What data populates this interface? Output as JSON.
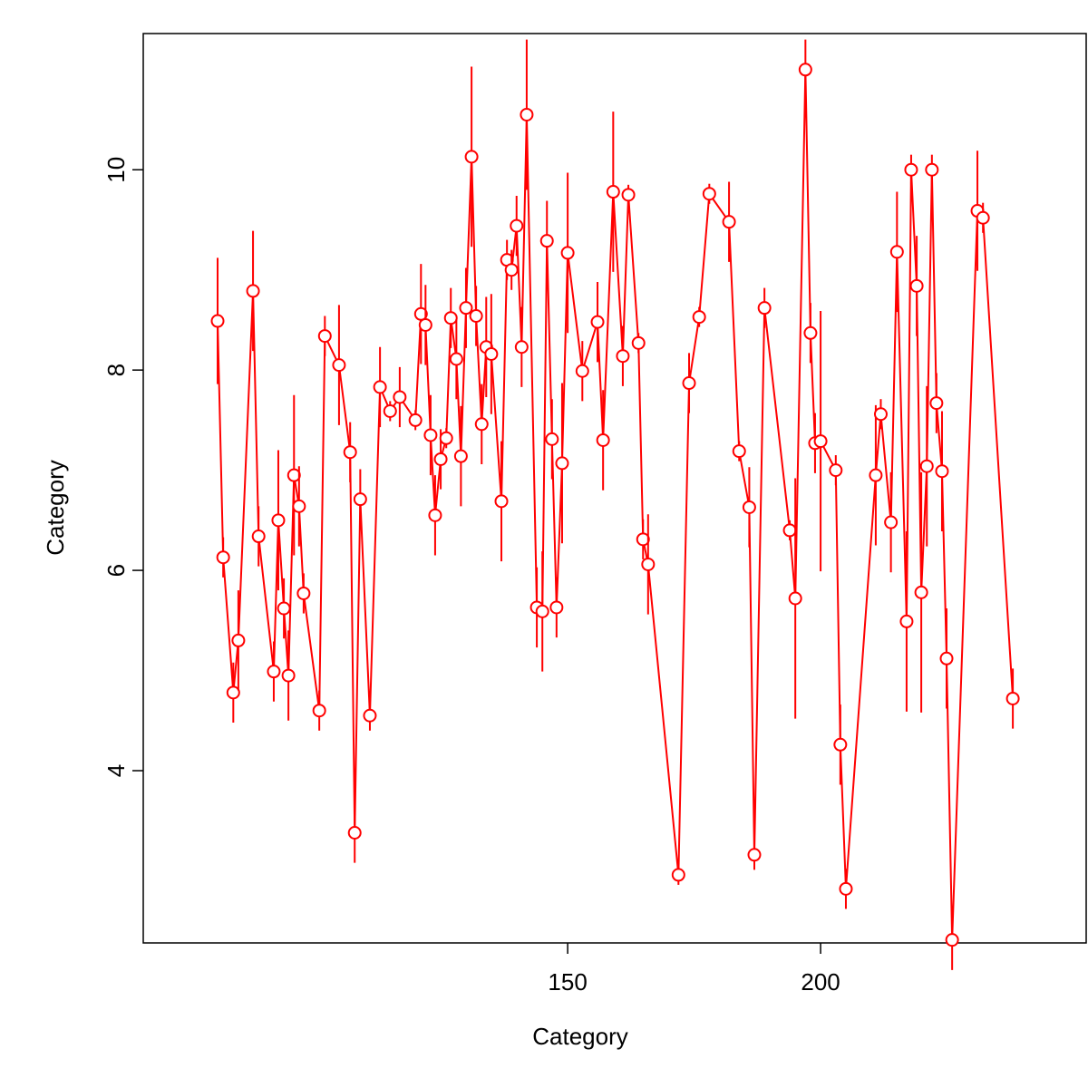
{
  "chart_data": {
    "type": "line-errorbar",
    "xlabel": "Category",
    "ylabel": "Category",
    "color": "#ff0000",
    "x": [
      80.8,
      81.9,
      83.9,
      84.9,
      87.8,
      88.9,
      91.9,
      92.8,
      93.9,
      94.8,
      95.9,
      96.9,
      97.8,
      100.9,
      102.0,
      104.8,
      107.0,
      107.9,
      109.0,
      110.9,
      112.9,
      114.9,
      116.8,
      119.9,
      121.0,
      121.9,
      122.9,
      123.8,
      124.9,
      126.0,
      126.9,
      128.0,
      128.9,
      129.9,
      131.0,
      131.9,
      133.0,
      133.9,
      134.9,
      136.9,
      138.0,
      138.9,
      139.9,
      140.9,
      141.9,
      143.9,
      145.0,
      145.9,
      146.9,
      147.8,
      148.9,
      150.0,
      152.9,
      155.9,
      157.0,
      159.0,
      160.9,
      162.0,
      164.0,
      164.9,
      165.9,
      171.9,
      174.0,
      176.0,
      178.0,
      181.9,
      183.9,
      185.9,
      186.9,
      188.9,
      193.9,
      195.0,
      197.0,
      198.0,
      198.9,
      200.0,
      203.0,
      203.9,
      205.0,
      210.9,
      211.9,
      213.9,
      215.1,
      217.0,
      217.9,
      219.0,
      219.9,
      221.0,
      222.0,
      222.9,
      224.0,
      224.9,
      226.0,
      231.0,
      232.1,
      238.0
    ],
    "y": [
      8.49,
      6.13,
      4.78,
      5.3,
      8.79,
      6.34,
      4.99,
      6.5,
      5.62,
      4.95,
      6.95,
      6.64,
      5.77,
      4.6,
      8.34,
      8.05,
      7.18,
      3.38,
      6.71,
      4.55,
      7.83,
      7.59,
      7.73,
      7.5,
      8.56,
      8.45,
      7.35,
      6.55,
      7.11,
      7.32,
      8.52,
      8.11,
      7.14,
      8.62,
      10.13,
      8.54,
      7.46,
      8.23,
      8.16,
      6.69,
      9.1,
      9.0,
      9.44,
      8.23,
      10.55,
      5.63,
      5.59,
      9.29,
      7.31,
      5.63,
      7.07,
      9.17,
      7.99,
      8.48,
      7.3,
      9.78,
      8.14,
      9.75,
      8.27,
      6.31,
      6.06,
      2.96,
      7.87,
      8.53,
      9.76,
      9.48,
      7.19,
      6.63,
      3.16,
      8.62,
      6.4,
      5.72,
      11.0,
      8.37,
      7.27,
      7.29,
      7.0,
      4.26,
      2.82,
      6.95,
      7.56,
      6.48,
      9.18,
      5.49,
      10.0,
      8.84,
      5.78,
      7.04,
      10.0,
      7.67,
      6.99,
      5.12,
      2.31,
      9.59,
      9.52,
      4.72
    ],
    "errors": [
      0.63,
      0.2,
      0.3,
      0.5,
      0.6,
      0.3,
      0.3,
      0.7,
      0.3,
      0.45,
      0.8,
      0.4,
      0.2,
      0.2,
      0.2,
      0.6,
      0.3,
      0.3,
      0.3,
      0.15,
      0.4,
      0.1,
      0.3,
      0.1,
      0.5,
      0.4,
      0.4,
      0.4,
      0.3,
      0.1,
      0.3,
      0.4,
      0.5,
      0.4,
      0.9,
      0.3,
      0.4,
      0.5,
      0.6,
      0.6,
      0.2,
      0.2,
      0.3,
      0.4,
      0.75,
      0.4,
      0.6,
      0.4,
      0.4,
      0.3,
      0.8,
      0.8,
      0.3,
      0.4,
      0.5,
      0.8,
      0.3,
      0.1,
      0.1,
      0.2,
      0.5,
      0.1,
      0.3,
      0.1,
      0.1,
      0.4,
      0.1,
      0.4,
      0.15,
      0.2,
      0.1,
      1.2,
      0.3,
      0.3,
      0.3,
      1.3,
      0.15,
      0.4,
      0.2,
      0.7,
      0.15,
      0.5,
      0.6,
      0.9,
      0.15,
      0.5,
      1.2,
      0.8,
      0.15,
      0.3,
      0.6,
      0.5,
      0.3,
      0.6,
      0.15,
      0.3
    ],
    "xlim": [
      66.1,
      252.5
    ],
    "ylim": [
      2.28,
      11.36
    ],
    "xticks": [
      150,
      200
    ],
    "yticks": [
      4,
      6,
      8,
      10
    ]
  }
}
